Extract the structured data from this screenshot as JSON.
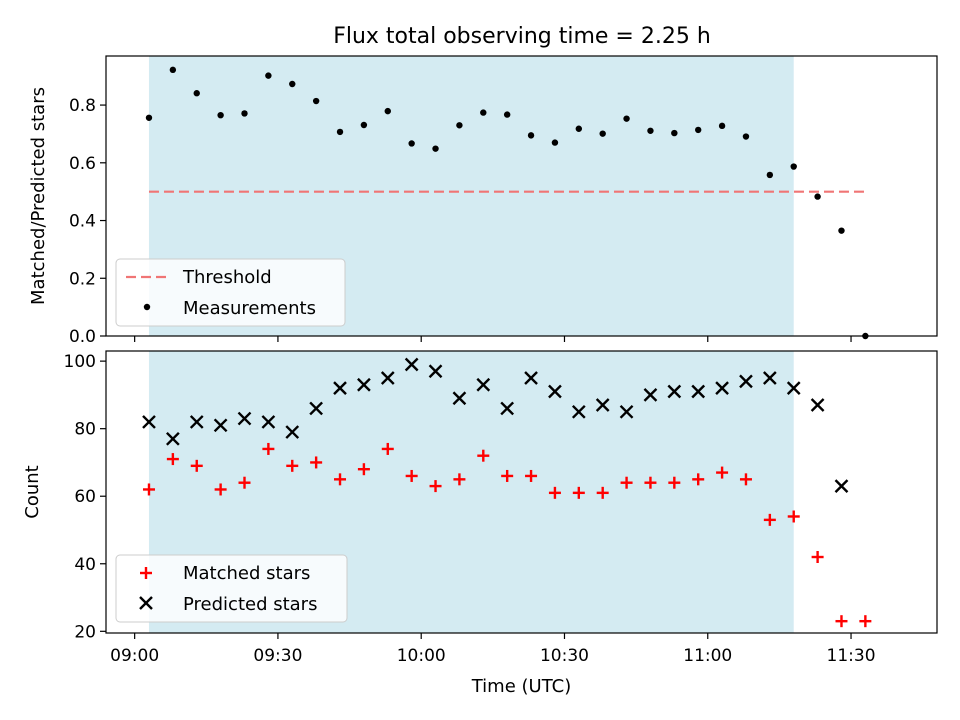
{
  "chart_data": [
    {
      "type": "scatter",
      "title": "Flux total observing time = 2.25 h",
      "xlabel": "",
      "ylabel": "Matched/Predicted stars",
      "ylim": [
        0,
        0.97
      ],
      "yticks": [
        "0.0",
        "0.2",
        "0.4",
        "0.6",
        "0.8"
      ],
      "ytick_values": [
        0,
        0.2,
        0.4,
        0.6,
        0.8
      ],
      "shaded_interval": [
        "09:03",
        "11:18"
      ],
      "shade_color": "#add8e6",
      "legend_position": "lower-left",
      "threshold": {
        "name": "Threshold",
        "value": 0.5,
        "x_range": [
          "09:03",
          "11:33"
        ],
        "color": "#f07575"
      },
      "series": [
        {
          "name": "Measurements",
          "marker": "dot",
          "color": "#000000",
          "x": [
            "09:03",
            "09:08",
            "09:13",
            "09:18",
            "09:23",
            "09:28",
            "09:33",
            "09:38",
            "09:43",
            "09:48",
            "09:53",
            "09:58",
            "10:03",
            "10:08",
            "10:13",
            "10:18",
            "10:23",
            "10:28",
            "10:33",
            "10:38",
            "10:43",
            "10:48",
            "10:53",
            "10:58",
            "11:03",
            "11:08",
            "11:13",
            "11:18",
            "11:23",
            "11:28",
            "11:33"
          ],
          "y": [
            0.756,
            0.922,
            0.841,
            0.765,
            0.771,
            0.902,
            0.873,
            0.814,
            0.707,
            0.731,
            0.779,
            0.667,
            0.649,
            0.73,
            0.774,
            0.767,
            0.695,
            0.67,
            0.718,
            0.701,
            0.753,
            0.711,
            0.703,
            0.714,
            0.728,
            0.691,
            0.558,
            0.587,
            0.483,
            0.365,
            0.0
          ]
        }
      ]
    },
    {
      "type": "scatter",
      "xlabel": "Time (UTC)",
      "ylabel": "Count",
      "ylim": [
        19.5,
        103
      ],
      "xlim": [
        "08:54",
        "11:48"
      ],
      "yticks": [
        "20",
        "40",
        "60",
        "80",
        "100"
      ],
      "ytick_values": [
        20,
        40,
        60,
        80,
        100
      ],
      "xticks": [
        "09:00",
        "09:30",
        "10:00",
        "10:30",
        "11:00",
        "11:30"
      ],
      "shaded_interval": [
        "09:03",
        "11:18"
      ],
      "shade_color": "#add8e6",
      "legend_position": "lower-left",
      "series": [
        {
          "name": "Matched stars",
          "marker": "plus",
          "color": "#ff0000",
          "x": [
            "09:03",
            "09:08",
            "09:13",
            "09:18",
            "09:23",
            "09:28",
            "09:33",
            "09:38",
            "09:43",
            "09:48",
            "09:53",
            "09:58",
            "10:03",
            "10:08",
            "10:13",
            "10:18",
            "10:23",
            "10:28",
            "10:33",
            "10:38",
            "10:43",
            "10:48",
            "10:53",
            "10:58",
            "11:03",
            "11:08",
            "11:13",
            "11:18",
            "11:23",
            "11:28",
            "11:33"
          ],
          "y": [
            62,
            71,
            69,
            62,
            64,
            74,
            69,
            70,
            65,
            68,
            74,
            66,
            63,
            65,
            72,
            66,
            66,
            61,
            61,
            61,
            64,
            64,
            64,
            65,
            67,
            65,
            53,
            54,
            42,
            23,
            23
          ]
        },
        {
          "name": "Predicted stars",
          "marker": "x",
          "color": "#000000",
          "x": [
            "09:03",
            "09:08",
            "09:13",
            "09:18",
            "09:23",
            "09:28",
            "09:33",
            "09:38",
            "09:43",
            "09:48",
            "09:53",
            "09:58",
            "10:03",
            "10:08",
            "10:13",
            "10:18",
            "10:23",
            "10:28",
            "10:33",
            "10:38",
            "10:43",
            "10:48",
            "10:53",
            "10:58",
            "11:03",
            "11:08",
            "11:13",
            "11:18",
            "11:23",
            "11:28"
          ],
          "y": [
            82,
            77,
            82,
            81,
            83,
            82,
            79,
            86,
            92,
            93,
            95,
            99,
            97,
            89,
            93,
            86,
            95,
            91,
            85,
            87,
            85,
            90,
            91,
            91,
            92,
            94,
            95,
            92,
            87,
            63
          ]
        }
      ]
    }
  ]
}
